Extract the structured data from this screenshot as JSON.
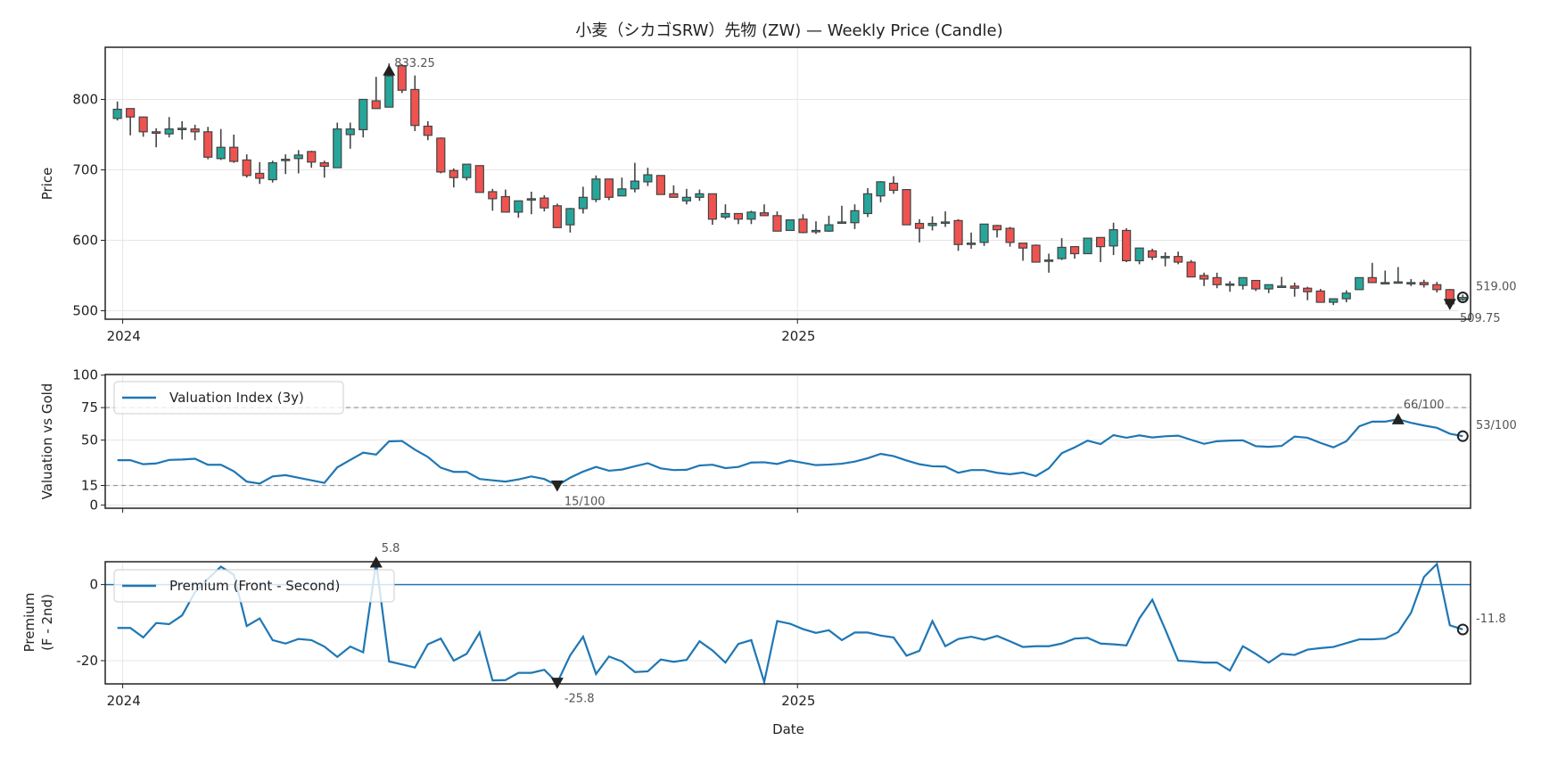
{
  "title": "小麦（シカゴSRW）先物 (ZW) — Weekly Price (Candle)",
  "colors": {
    "up": "#26a69a",
    "down": "#ef5350",
    "edge": "#444444",
    "line": "#1f77b4",
    "ref": "#999999",
    "grid": "#e6e6e6"
  },
  "chart_data": [
    {
      "type": "candlestick",
      "name": "price",
      "ylabel": "Price",
      "x_start": "2023-12-29",
      "x_interval": "weekly",
      "xticks": [
        {
          "pos": 0.41,
          "label": "2024"
        },
        {
          "pos": 52.57,
          "label": "2025"
        }
      ],
      "xlim": [
        -0.94,
        104.6
      ],
      "ylim": [
        488,
        874
      ],
      "yticks": [
        500,
        600,
        700,
        800
      ],
      "grid": true,
      "ohlc": [
        [
          773,
          797,
          770,
          786
        ],
        [
          787,
          787,
          749,
          775
        ],
        [
          775,
          775,
          747,
          754
        ],
        [
          754,
          759,
          732,
          752
        ],
        [
          751,
          775,
          746,
          758
        ],
        [
          758,
          769,
          743,
          759
        ],
        [
          758,
          764,
          742,
          754
        ],
        [
          754,
          761,
          715,
          718
        ],
        [
          716,
          758,
          714,
          732
        ],
        [
          732,
          750,
          710,
          712
        ],
        [
          714,
          722,
          689,
          692
        ],
        [
          695,
          711,
          680,
          688
        ],
        [
          686,
          713,
          682,
          710
        ],
        [
          714,
          722,
          694,
          715
        ],
        [
          716,
          728,
          695,
          721
        ],
        [
          726,
          727,
          703,
          711
        ],
        [
          710,
          713,
          689,
          705
        ],
        [
          703,
          767,
          703,
          758
        ],
        [
          750,
          767,
          730,
          758
        ],
        [
          757,
          800,
          746,
          800
        ],
        [
          798,
          832,
          787,
          787
        ],
        [
          789,
          851,
          789,
          833.25
        ],
        [
          848,
          850,
          809,
          813
        ],
        [
          814,
          834,
          755,
          763
        ],
        [
          762,
          769,
          742,
          749
        ],
        [
          745,
          746,
          695,
          697
        ],
        [
          699,
          702,
          675,
          689
        ],
        [
          689,
          708,
          685,
          708
        ],
        [
          706,
          706,
          668,
          668
        ],
        [
          669,
          673,
          642,
          659
        ],
        [
          662,
          672,
          640,
          640
        ],
        [
          640,
          656,
          632,
          656
        ],
        [
          658,
          669,
          637,
          659
        ],
        [
          660,
          664,
          641,
          646
        ],
        [
          649,
          652,
          618,
          618
        ],
        [
          622,
          646,
          611,
          645
        ],
        [
          645,
          676,
          638,
          661
        ],
        [
          658,
          692,
          654,
          687
        ],
        [
          687,
          687,
          657,
          661
        ],
        [
          663,
          689,
          663,
          673
        ],
        [
          673,
          710,
          668,
          684
        ],
        [
          683,
          703,
          677,
          693
        ],
        [
          692,
          692,
          665,
          665
        ],
        [
          666,
          678,
          661,
          661
        ],
        [
          656,
          673,
          651,
          661
        ],
        [
          661,
          672,
          656,
          666
        ],
        [
          666,
          666,
          622,
          630
        ],
        [
          633,
          651,
          630,
          638
        ],
        [
          638,
          638,
          623,
          630
        ],
        [
          630,
          642,
          623,
          640
        ],
        [
          639,
          651,
          635,
          635
        ],
        [
          635,
          641,
          613,
          613
        ],
        [
          614,
          629,
          614,
          629
        ],
        [
          630,
          637,
          610,
          611
        ],
        [
          612,
          627,
          609,
          614
        ],
        [
          613,
          635,
          612,
          622
        ],
        [
          626,
          649,
          624,
          626
        ],
        [
          625,
          651,
          616,
          642
        ],
        [
          638,
          674,
          633,
          666
        ],
        [
          663,
          684,
          654,
          683
        ],
        [
          681,
          691,
          666,
          671
        ],
        [
          672,
          672,
          622,
          622
        ],
        [
          624,
          630,
          597,
          617
        ],
        [
          621,
          634,
          614,
          624
        ],
        [
          626,
          641,
          619,
          626
        ],
        [
          628,
          630,
          585,
          594
        ],
        [
          596,
          611,
          588,
          596
        ],
        [
          597,
          623,
          592,
          623
        ],
        [
          621,
          622,
          604,
          615
        ],
        [
          617,
          619,
          591,
          597
        ],
        [
          596,
          596,
          571,
          589
        ],
        [
          593,
          594,
          569,
          569
        ],
        [
          572,
          581,
          554,
          572
        ],
        [
          574,
          603,
          572,
          590
        ],
        [
          591,
          591,
          574,
          581
        ],
        [
          581,
          603,
          581,
          603
        ],
        [
          604,
          604,
          569,
          591
        ],
        [
          592,
          625,
          579,
          615
        ],
        [
          614,
          617,
          569,
          571
        ],
        [
          571,
          589,
          566,
          589
        ],
        [
          585,
          588,
          572,
          576
        ],
        [
          577,
          583,
          563,
          577
        ],
        [
          577,
          584,
          566,
          569
        ],
        [
          569,
          572,
          548,
          548
        ],
        [
          550,
          554,
          535,
          545
        ],
        [
          547,
          554,
          532,
          537
        ],
        [
          538,
          542,
          527,
          538
        ],
        [
          536,
          547,
          530,
          547
        ],
        [
          543,
          543,
          528,
          531
        ],
        [
          531,
          537,
          525,
          537
        ],
        [
          535,
          548,
          533,
          535
        ],
        [
          535,
          540,
          520,
          532
        ],
        [
          532,
          534,
          515,
          527
        ],
        [
          528,
          531,
          512,
          512
        ],
        [
          512,
          517,
          508,
          517
        ],
        [
          517,
          529,
          512,
          525
        ],
        [
          530,
          547,
          530,
          547
        ],
        [
          547,
          568,
          540,
          540
        ],
        [
          540,
          557,
          538,
          540
        ],
        [
          540,
          562,
          540,
          541
        ],
        [
          540,
          545,
          535,
          540
        ],
        [
          540,
          544,
          533,
          537
        ],
        [
          537,
          541,
          526,
          530
        ],
        [
          530,
          531,
          509.75,
          509.75
        ],
        [
          516,
          523,
          514,
          519
        ]
      ],
      "annotations": [
        {
          "kind": "max",
          "index": 21,
          "value": 833.25,
          "label": "833.25"
        },
        {
          "kind": "min",
          "index": 103,
          "value": 509.75,
          "label": "509.75"
        },
        {
          "kind": "last",
          "index": 104,
          "value": 519.0,
          "label": "519.00"
        }
      ]
    },
    {
      "type": "line",
      "name": "valuation",
      "ylabel": "Valuation vs Gold",
      "legend": "Valuation Index (3y)",
      "legend_position": "upper-left",
      "ylim": [
        -2.5,
        100.5
      ],
      "yticks": [
        0,
        15,
        50,
        75,
        100
      ],
      "ref_lines": [
        15,
        75
      ],
      "values": [
        34.5,
        34.5,
        31.4,
        32,
        34.7,
        35,
        35.6,
        31,
        31,
        26,
        18,
        16.5,
        22,
        23,
        21,
        19,
        17,
        29,
        34.7,
        40.3,
        38.8,
        49,
        49.3,
        42.6,
        37,
        28.7,
        25.5,
        25.5,
        20,
        19,
        18,
        19.7,
        22,
        20,
        15,
        21,
        25.7,
        29.3,
        26.4,
        27.3,
        29.8,
        32.2,
        28.2,
        26.9,
        27.1,
        30.4,
        31,
        28.4,
        29.3,
        32.7,
        32.9,
        31.6,
        34.3,
        32.5,
        30.7,
        31.1,
        31.8,
        33.4,
        36,
        39.4,
        37.6,
        34.3,
        31.4,
        29.8,
        29.6,
        24.8,
        26.9,
        26.9,
        24.8,
        23.7,
        25,
        22.3,
        28.2,
        39.9,
        44.4,
        49.6,
        46.9,
        53.8,
        51.8,
        53.6,
        52,
        52.9,
        53.4,
        50.2,
        47.1,
        49.1,
        49.6,
        49.8,
        45.3,
        44.8,
        45.5,
        52.7,
        51.8,
        47.8,
        44.4,
        49.1,
        60.6,
        64.2,
        64.2,
        66,
        63.3,
        61.2,
        59.4,
        54.9,
        53
      ],
      "annotations": [
        {
          "kind": "min",
          "index": 34,
          "value": 15,
          "label": "15/100"
        },
        {
          "kind": "max",
          "index": 99,
          "value": 66,
          "label": "66/100"
        },
        {
          "kind": "last",
          "index": 104,
          "value": 53,
          "label": "53/100"
        }
      ]
    },
    {
      "type": "line",
      "name": "premium",
      "ylabel": [
        "Premium",
        "(F - 2nd)"
      ],
      "xlabel": "Date",
      "legend": "Premium (Front - Second)",
      "legend_position": "upper-left",
      "ylim": [
        -26.1,
        6.0
      ],
      "yticks": [
        -20,
        0
      ],
      "ref_lines": [
        0
      ],
      "values": [
        -11.4,
        -11.4,
        -13.9,
        -10.1,
        -10.4,
        -8.1,
        -2,
        1.5,
        4.7,
        2.6,
        -10.9,
        -8.9,
        -14.6,
        -15.5,
        -14.3,
        -14.6,
        -16.3,
        -19,
        -16.3,
        -17.8,
        5.8,
        -20.2,
        -21,
        -21.8,
        -15.7,
        -14.2,
        -20,
        -18.2,
        -12.6,
        -25.2,
        -25.1,
        -23.2,
        -23.2,
        -22.4,
        -25.8,
        -18.6,
        -13.7,
        -23.5,
        -18.9,
        -20.2,
        -23,
        -22.8,
        -19.7,
        -20.3,
        -19.8,
        -14.9,
        -17.3,
        -20.5,
        -15.6,
        -14.6,
        -25.6,
        -9.6,
        -10.3,
        -11.7,
        -12.7,
        -12,
        -14.6,
        -12.6,
        -12.6,
        -13.4,
        -13.9,
        -18.7,
        -17.4,
        -9.6,
        -16.2,
        -14.3,
        -13.7,
        -14.5,
        -13.5,
        -14.9,
        -16.4,
        -16.2,
        -16.2,
        -15.5,
        -14.2,
        -14,
        -15.5,
        -15.7,
        -16,
        -8.9,
        -4,
        -11.8,
        -20,
        -20.2,
        -20.5,
        -20.5,
        -22.6,
        -16.2,
        -18.2,
        -20.5,
        -18.2,
        -18.5,
        -17.1,
        -16.7,
        -16.4,
        -15.4,
        -14.4,
        -14.4,
        -14.2,
        -12.5,
        -7.4,
        2,
        5.4,
        -10.7,
        -11.8
      ],
      "annotations": [
        {
          "kind": "max",
          "index": 20,
          "value": 5.8,
          "label": "5.8"
        },
        {
          "kind": "min",
          "index": 34,
          "value": -25.8,
          "label": "-25.8"
        },
        {
          "kind": "last",
          "index": 104,
          "value": -11.8,
          "label": "-11.8"
        }
      ]
    }
  ]
}
